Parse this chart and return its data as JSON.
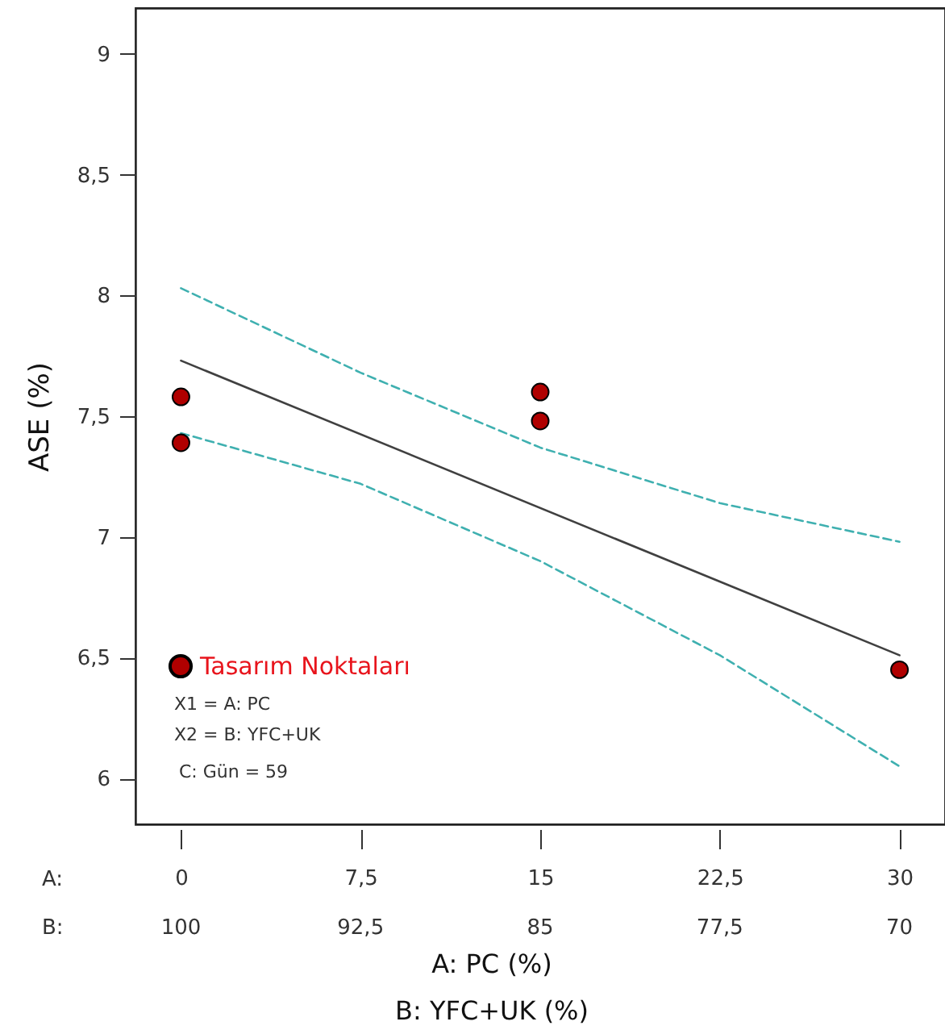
{
  "chart_data": {
    "type": "scatter",
    "xlabel": "A: PC (%)",
    "x2label": "B: YFC+UK (%)",
    "ylabel": "ASE (%)",
    "xlim": [
      -1.9,
      31.9
    ],
    "xticks": [
      0,
      {
        "value": 7.5,
        "label": "7,5"
      },
      15,
      {
        "value": 22.5,
        "label": "22,5"
      },
      30
    ],
    "x2lim": [
      101.9,
      68.1
    ],
    "x2ticks": [
      100,
      {
        "value": 92.5,
        "label": "92,5"
      },
      85,
      {
        "value": 77.5,
        "label": "77,5"
      },
      70
    ],
    "ylim": [
      5.81,
      9.19
    ],
    "yticks": [
      6,
      {
        "value": 6.5,
        "label": "6,5"
      },
      7,
      {
        "value": 7.5,
        "label": "7,5"
      },
      8,
      {
        "value": 8.5,
        "label": "8,5"
      },
      9
    ],
    "grid": false,
    "legend": "bottom left",
    "series": [
      {
        "type": "line",
        "color": "#404040",
        "line_style": "solid",
        "marker": "none",
        "x": [
          0,
          30
        ],
        "values": [
          7.73,
          6.51
        ]
      },
      {
        "type": "line",
        "color": "#3fb0b0",
        "line_style": "dashed",
        "marker": "none",
        "x": [
          0,
          7.5,
          15,
          22.5,
          30
        ],
        "values": [
          8.03,
          7.68,
          7.37,
          7.14,
          6.98
        ]
      },
      {
        "type": "line",
        "color": "#3fb0b0",
        "line_style": "dashed",
        "marker": "none",
        "x": [
          0,
          7.5,
          15,
          22.5,
          30
        ],
        "values": [
          7.43,
          7.22,
          6.9,
          6.51,
          6.05
        ]
      },
      {
        "name": "Tasarım Noktaları",
        "color": "#b00000",
        "marker": "circle",
        "x": [
          0,
          0,
          15,
          15,
          30
        ],
        "values": [
          7.58,
          7.39,
          7.6,
          7.48,
          6.45
        ]
      }
    ],
    "annotations": [
      "A:",
      "B:",
      "X1 = A: PC",
      "X2 = B: YFC+UK",
      "C: Gün = 59"
    ]
  }
}
